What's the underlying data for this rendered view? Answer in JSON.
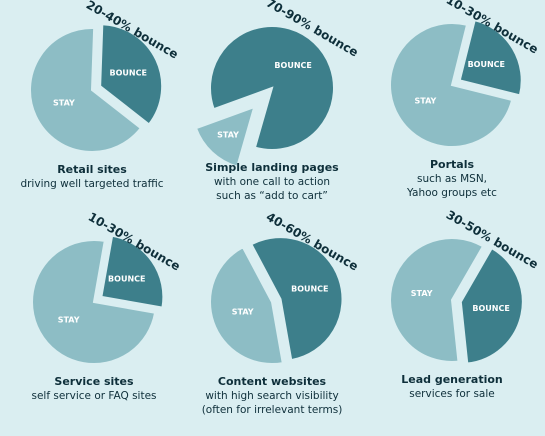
{
  "chart_data": [
    {
      "type": "pie",
      "title": "Retail sites",
      "subtitle": [
        "driving well targeted traffic"
      ],
      "annotation": "20-40% bounce",
      "categories": [
        "BOUNCE",
        "STAY"
      ],
      "values": [
        35,
        65
      ],
      "colors": [
        "#3d7f8b",
        "#8dbdc5"
      ],
      "exploded": 0
    },
    {
      "type": "pie",
      "title": "Simple landing pages",
      "subtitle": [
        "with one call to action",
        "such as “add to cart”"
      ],
      "annotation": "70-90% bounce",
      "categories": [
        "BOUNCE",
        "STAY"
      ],
      "values": [
        85,
        15
      ],
      "colors": [
        "#3d7f8b",
        "#8dbdc5"
      ],
      "exploded": 1
    },
    {
      "type": "pie",
      "title": "Portals",
      "subtitle": [
        "such as MSN,",
        "Yahoo groups etc"
      ],
      "annotation": "10-30% bounce",
      "categories": [
        "BOUNCE",
        "STAY"
      ],
      "values": [
        25,
        75
      ],
      "colors": [
        "#3d7f8b",
        "#8dbdc5"
      ],
      "exploded": 0
    },
    {
      "type": "pie",
      "title": "Service sites",
      "subtitle": [
        "self service or FAQ sites"
      ],
      "annotation": "10-30% bounce",
      "categories": [
        "BOUNCE",
        "STAY"
      ],
      "values": [
        25,
        75
      ],
      "colors": [
        "#3d7f8b",
        "#8dbdc5"
      ],
      "exploded": 0
    },
    {
      "type": "pie",
      "title": "Content websites",
      "subtitle": [
        "with high search visibility",
        "(often for irrelevant terms)"
      ],
      "annotation": "40-60% bounce",
      "categories": [
        "BOUNCE",
        "STAY"
      ],
      "values": [
        55,
        45
      ],
      "colors": [
        "#3d7f8b",
        "#8dbdc5"
      ],
      "exploded": 0
    },
    {
      "type": "pie",
      "title": "Lead generation",
      "subtitle": [
        "services for sale"
      ],
      "annotation": "30-50% bounce",
      "categories": [
        "BOUNCE",
        "STAY"
      ],
      "values": [
        40,
        60
      ],
      "colors": [
        "#3d7f8b",
        "#8dbdc5"
      ],
      "exploded": 0
    }
  ]
}
